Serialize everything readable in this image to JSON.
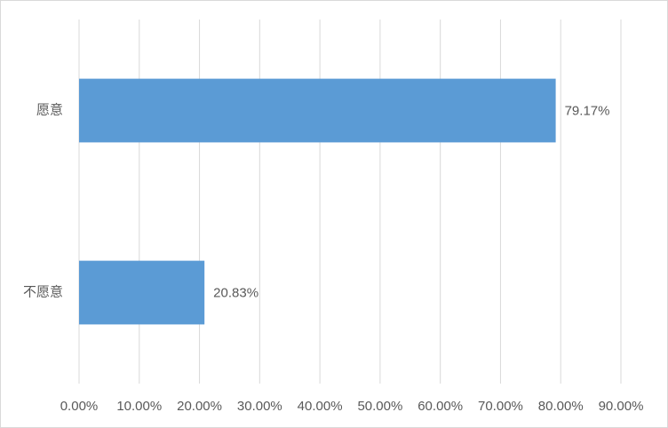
{
  "chart_data": {
    "type": "barh",
    "categories": [
      "愿意",
      "不愿意"
    ],
    "values": [
      79.17,
      20.83
    ],
    "value_labels": [
      "79.17%",
      "20.83%"
    ],
    "color": "#5b9bd5",
    "xlim": [
      0,
      90
    ],
    "xticks": [
      {
        "value": 0,
        "label": "0.00%"
      },
      {
        "value": 10,
        "label": "10.00%"
      },
      {
        "value": 20,
        "label": "20.00%"
      },
      {
        "value": 30,
        "label": "30.00%"
      },
      {
        "value": 40,
        "label": "40.00%"
      },
      {
        "value": 50,
        "label": "50.00%"
      },
      {
        "value": 60,
        "label": "60.00%"
      },
      {
        "value": 70,
        "label": "70.00%"
      },
      {
        "value": 80,
        "label": "80.00%"
      },
      {
        "value": 90,
        "label": "90.00%"
      }
    ],
    "grid": true
  }
}
